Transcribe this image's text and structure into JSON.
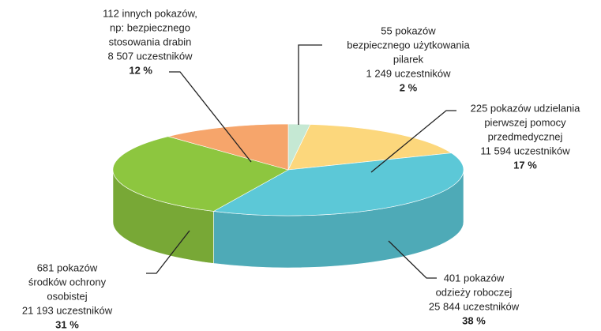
{
  "chart_data": {
    "type": "pie",
    "categories": [
      [
        "55 pokazów",
        "bezpiecznego użytkowania",
        "pilarek",
        "1 249 uczestników"
      ],
      [
        "225 pokazów udzielania",
        "pierwszej pomocy",
        "przedmedycznej",
        "11 594 uczestników"
      ],
      [
        "401 pokazów",
        "odzieży roboczej",
        "25 844 uczestników"
      ],
      [
        "681 pokazów",
        "środków ochrony",
        "osobistej",
        "21 193 uczestników"
      ],
      [
        "112 innych pokazów,",
        "np: bezpiecznego",
        "stosowania drabin",
        "8 507 uczestników"
      ]
    ],
    "values": [
      2,
      17,
      38,
      31,
      12
    ],
    "value_labels": [
      "2 %",
      "17 %",
      "38 %",
      "31 %",
      "12 %"
    ],
    "colors": [
      "#c5e8d3",
      "#fcd77c",
      "#5cc8d7",
      "#8dc63f",
      "#f6a56b"
    ]
  }
}
